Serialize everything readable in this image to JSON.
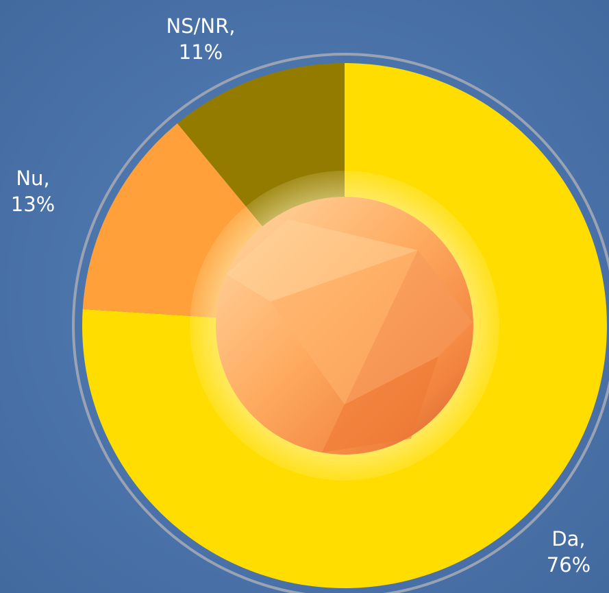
{
  "chart_data": {
    "type": "pie",
    "categories": [
      "Da,",
      "Nu,",
      "NS/NR,"
    ],
    "values": [
      76,
      13,
      11
    ],
    "value_labels": [
      "76%",
      "13%",
      "11%"
    ],
    "colors": [
      "#ffdd00",
      "#ffa03a",
      "#937b00"
    ]
  }
}
